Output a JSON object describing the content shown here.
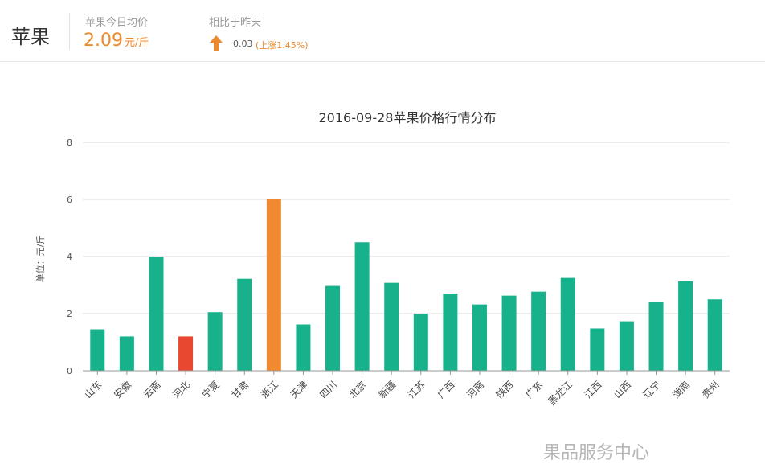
{
  "header": {
    "fruit_name": "苹果",
    "avg_label": "苹果今日均价",
    "avg_value": "2.09",
    "avg_unit": "元/斤",
    "compare_label": "相比于昨天",
    "change_value": "0.03",
    "change_pct": "(上涨1.45%)",
    "trend_icon": "arrow-up-icon"
  },
  "colors": {
    "bar_default": "#17b28c",
    "bar_low": "#e94830",
    "bar_high": "#ef8a30",
    "accent": "#ec8a2c",
    "grid": "#d9d9d9"
  },
  "watermark": "果品服务中心",
  "chart_data": {
    "type": "bar",
    "title": "2016-09-28苹果价格行情分布",
    "xlabel": "",
    "ylabel": "单位：元/斤",
    "ylim": [
      0,
      8
    ],
    "yticks": [
      0,
      2,
      4,
      6,
      8
    ],
    "grid": true,
    "categories": [
      "山东",
      "安徽",
      "云南",
      "河北",
      "宁夏",
      "甘肃",
      "浙江",
      "天津",
      "四川",
      "北京",
      "新疆",
      "江苏",
      "广西",
      "河南",
      "陕西",
      "广东",
      "黑龙江",
      "江西",
      "山西",
      "辽宁",
      "湖南",
      "贵州"
    ],
    "values": [
      1.45,
      1.2,
      4.0,
      1.2,
      2.05,
      3.22,
      6.0,
      1.62,
      2.97,
      4.5,
      3.08,
      2.0,
      2.7,
      2.32,
      2.63,
      2.77,
      3.25,
      1.48,
      1.73,
      2.4,
      3.13,
      2.5
    ],
    "highlight": {
      "河北": "low",
      "浙江": "high"
    }
  }
}
